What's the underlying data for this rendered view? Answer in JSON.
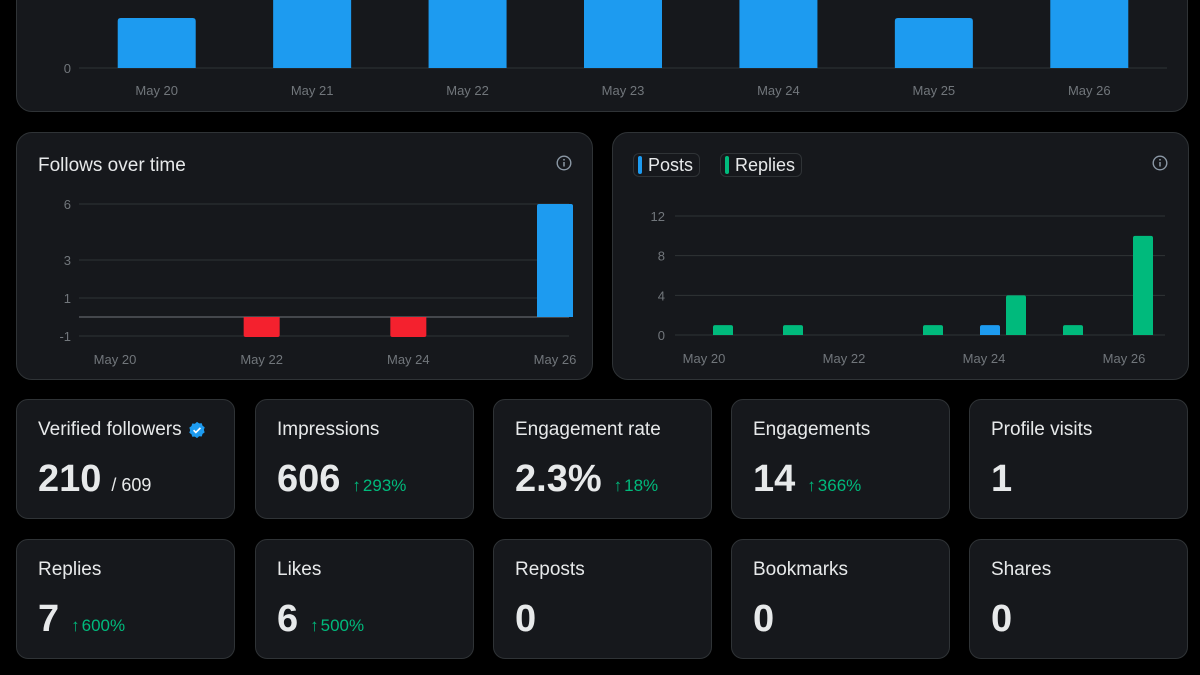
{
  "colors": {
    "blue": "#1d9bf0",
    "red": "#f4212e",
    "green": "#00ba7c",
    "grid": "#2f3336",
    "axis": "#71767b"
  },
  "chart_data": [
    {
      "id": "top",
      "type": "bar",
      "title": "",
      "categories": [
        "May 20",
        "May 21",
        "May 22",
        "May 23",
        "May 24",
        "May 25",
        "May 26"
      ],
      "values": [
        1,
        2,
        2,
        2,
        2,
        1,
        2
      ],
      "yticks": [
        "0"
      ],
      "grid": true
    },
    {
      "id": "follows",
      "type": "bar",
      "title": "Follows over time",
      "categories": [
        "May 20",
        "May 21",
        "May 22",
        "May 23",
        "May 24",
        "May 25",
        "May 26"
      ],
      "xtick_labels": [
        "May 20",
        "May 22",
        "May 24",
        "May 26"
      ],
      "values": [
        0,
        0,
        -1,
        0,
        -1,
        0,
        6
      ],
      "yticks": [
        "6",
        "3",
        "1",
        "-1"
      ],
      "ylim": [
        -1,
        6
      ],
      "grid": true
    },
    {
      "id": "posts_replies",
      "type": "bar",
      "title": "",
      "categories": [
        "May 20",
        "May 21",
        "May 22",
        "May 23",
        "May 24",
        "May 25",
        "May 26"
      ],
      "xtick_labels": [
        "May 20",
        "May 22",
        "May 24",
        "May 26"
      ],
      "series": [
        {
          "name": "Posts",
          "values": [
            0,
            0,
            0,
            0,
            1,
            0,
            0
          ]
        },
        {
          "name": "Replies",
          "values": [
            1,
            1,
            0,
            1,
            4,
            1,
            10
          ]
        }
      ],
      "yticks": [
        "12",
        "8",
        "4",
        "0"
      ],
      "ylim": [
        0,
        12
      ],
      "legend": "top-left",
      "grid": true
    }
  ],
  "cards": [
    {
      "label": "Verified followers",
      "value": "210",
      "sub": "/ 609",
      "delta": "",
      "verified": true
    },
    {
      "label": "Impressions",
      "value": "606",
      "sub": "",
      "delta": "293%"
    },
    {
      "label": "Engagement rate",
      "value": "2.3%",
      "sub": "",
      "delta": "18%"
    },
    {
      "label": "Engagements",
      "value": "14",
      "sub": "",
      "delta": "366%"
    },
    {
      "label": "Profile visits",
      "value": "1",
      "sub": "",
      "delta": ""
    },
    {
      "label": "Replies",
      "value": "7",
      "sub": "",
      "delta": "600%"
    },
    {
      "label": "Likes",
      "value": "6",
      "sub": "",
      "delta": "500%"
    },
    {
      "label": "Reposts",
      "value": "0",
      "sub": "",
      "delta": ""
    },
    {
      "label": "Bookmarks",
      "value": "0",
      "sub": "",
      "delta": ""
    },
    {
      "label": "Shares",
      "value": "0",
      "sub": "",
      "delta": ""
    }
  ],
  "icons": {
    "info": "info-icon",
    "verified": "verified-badge-icon",
    "delta": "arrow-up-icon"
  }
}
